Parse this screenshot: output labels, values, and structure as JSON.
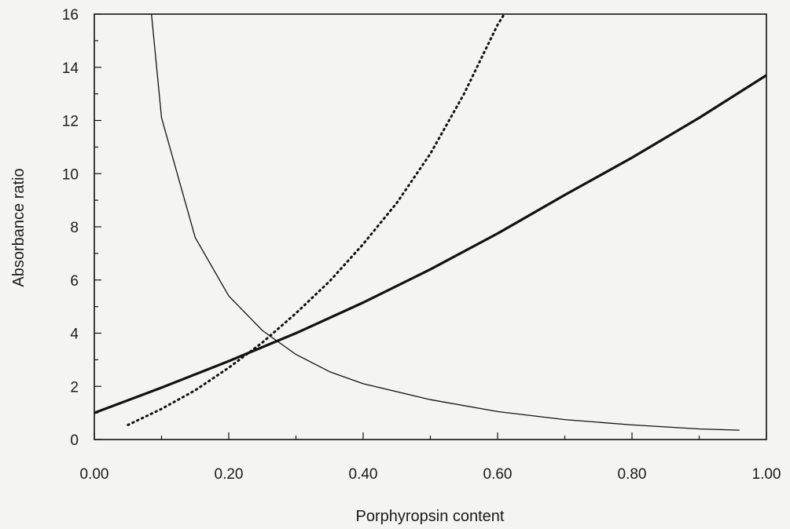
{
  "chart_data": {
    "type": "line",
    "title": "",
    "xlabel": "Porphyropsin content",
    "ylabel": "Absorbance ratio",
    "xlim": [
      0,
      1
    ],
    "ylim": [
      0,
      16
    ],
    "xticks": [
      0,
      0.2,
      0.4,
      0.6,
      0.8,
      1.0
    ],
    "xtick_labels": [
      "0.00",
      "0.20",
      "0.40",
      "0.60",
      "0.80",
      "1.00"
    ],
    "yticks": [
      0,
      2,
      4,
      6,
      8,
      10,
      12,
      14,
      16
    ],
    "ytick_labels": [
      "0",
      "2",
      "4",
      "6",
      "8",
      "10",
      "12",
      "14",
      "16"
    ],
    "grid": false,
    "legend": "none",
    "series": [
      {
        "style": "thick-solid",
        "color": "#111111",
        "x": [
          0.0,
          0.1,
          0.2,
          0.3,
          0.4,
          0.5,
          0.6,
          0.7,
          0.8,
          0.9,
          1.0
        ],
        "y": [
          1.0,
          1.95,
          2.95,
          4.0,
          5.15,
          6.4,
          7.75,
          9.2,
          10.6,
          12.1,
          13.7
        ]
      },
      {
        "style": "thin-solid",
        "color": "#111111",
        "x": [
          0.085,
          0.1,
          0.15,
          0.2,
          0.25,
          0.3,
          0.35,
          0.4,
          0.5,
          0.6,
          0.7,
          0.8,
          0.9,
          0.96
        ],
        "y": [
          16,
          12.1,
          7.6,
          5.4,
          4.1,
          3.2,
          2.55,
          2.1,
          1.5,
          1.05,
          0.75,
          0.55,
          0.4,
          0.35
        ]
      },
      {
        "style": "dotted",
        "color": "#111111",
        "x": [
          0.05,
          0.1,
          0.15,
          0.2,
          0.25,
          0.3,
          0.35,
          0.4,
          0.45,
          0.5,
          0.55,
          0.6,
          0.61
        ],
        "y": [
          0.55,
          1.15,
          1.85,
          2.7,
          3.65,
          4.75,
          5.95,
          7.35,
          8.9,
          10.75,
          13.0,
          15.6,
          16
        ]
      }
    ]
  }
}
